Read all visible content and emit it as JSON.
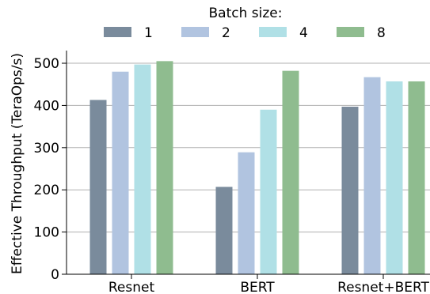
{
  "chart_data": {
    "type": "bar",
    "title": "",
    "xlabel": "",
    "ylabel": "Effective Throughput (TeraOps/s)",
    "ylim": [
      0,
      530
    ],
    "yticks": [
      0,
      100,
      200,
      300,
      400,
      500
    ],
    "grid": true,
    "legend": {
      "title": "Batch size:",
      "placement": "top-center"
    },
    "categories": [
      "Resnet",
      "BERT",
      "Resnet+BERT"
    ],
    "series": [
      {
        "name": "1",
        "color": "#7a8b9c",
        "values": [
          413,
          207,
          397
        ]
      },
      {
        "name": "2",
        "color": "#b1c4e0",
        "values": [
          480,
          289,
          467
        ]
      },
      {
        "name": "4",
        "color": "#b0e0e6",
        "values": [
          497,
          390,
          457
        ]
      },
      {
        "name": "8",
        "color": "#8fbc8f",
        "values": [
          505,
          482,
          457
        ]
      }
    ]
  }
}
